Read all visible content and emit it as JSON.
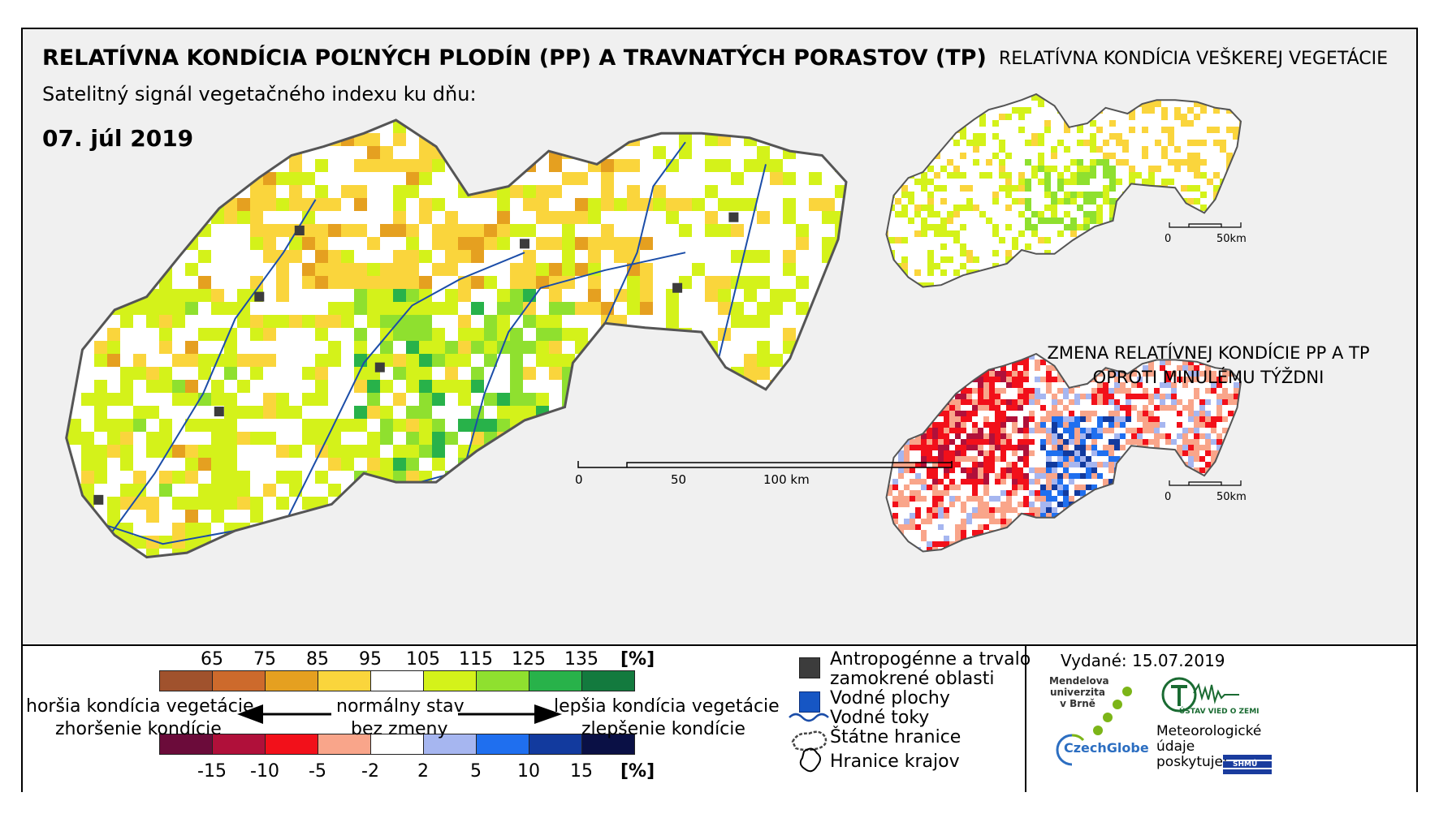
{
  "header": {
    "title": "RELATÍVNA KONDÍCIA POĽNÝCH PLODÍN (PP) A TRAVNATÝCH PORASTOV (TP)",
    "subtitle": "Satelitný signál vegetačného indexu ku dňu:",
    "date": "07. júl 2019"
  },
  "inset_top": {
    "title": "RELATÍVNA KONDÍCIA VEŠKEREJ VEGETÁCIE",
    "scale": [
      "0",
      "50km"
    ]
  },
  "inset_bottom": {
    "title_line1": "ZMENA RELATÍVNEJ KONDÍCIE PP A TP",
    "title_line2": "OPROTI MINULÉMU TÝŽDNI",
    "scale": [
      "0",
      "50km"
    ]
  },
  "main_scale": [
    "0",
    "50",
    "100 km"
  ],
  "legend_condition": {
    "ticks": [
      "65",
      "75",
      "85",
      "95",
      "105",
      "115",
      "125",
      "135"
    ],
    "unit": "[%]",
    "colors": [
      "#a0522d",
      "#cd6a2c",
      "#e5a020",
      "#fad53c",
      "#ffffff",
      "#d4f21a",
      "#8fe02f",
      "#28b24a",
      "#137a3e"
    ]
  },
  "legend_change": {
    "ticks": [
      "-15",
      "-10",
      "-5",
      "-2",
      "2",
      "5",
      "10",
      "15"
    ],
    "unit": "[%]",
    "colors": [
      "#6b0b3a",
      "#b0103a",
      "#f2101a",
      "#f9a58a",
      "#ffffff",
      "#a6b6f0",
      "#1f6fef",
      "#123a9e",
      "#0a1045"
    ]
  },
  "legend_labels": {
    "worse_line1": "horšia kondícia vegetácie",
    "worse_line2": "zhoršenie kondície",
    "normal_line1": "normálny stav",
    "normal_line2": "bez zmeny",
    "better_line1": "lepšia kondícia vegetácie",
    "better_line2": "zlepšenie kondície"
  },
  "legend_symbols": {
    "anthropogenic_line1": "Antropogénne a trvalo",
    "anthropogenic_line2": "zamokrené oblasti",
    "water_bodies": "Vodné plochy",
    "rivers": "Vodné toky",
    "state_border": "Štátne hranice",
    "region_border": "Hranice krajov"
  },
  "issued": "Vydané: 15.07.2019",
  "logos": {
    "mendel_line1": "Mendelova",
    "mendel_line2": "univerzita",
    "mendel_line3": "v Brně",
    "czechglobe": "CzechGlobe",
    "uvz": "ÚSTAV VIED O ZEMI",
    "shmu": "SHMÚ"
  },
  "meteo": {
    "line1": "Meteorologické",
    "line2": "údaje",
    "line3": "poskytuje:"
  }
}
